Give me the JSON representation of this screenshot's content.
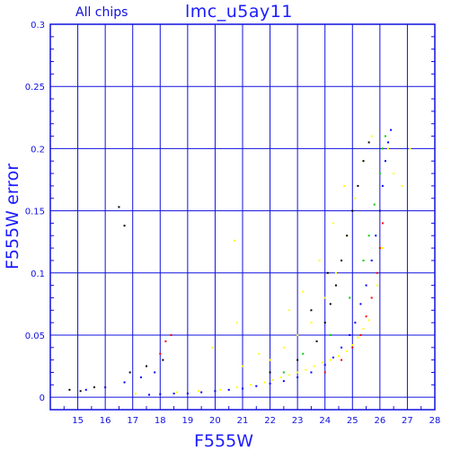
{
  "chart_data": {
    "type": "scatter",
    "subtitle": "All chips",
    "title": "lmc_u5ay11",
    "xlabel": "F555W",
    "ylabel": "F555W error",
    "xlim": [
      14,
      28
    ],
    "ylim": [
      -0.01,
      0.3
    ],
    "x_ticks": [
      15,
      16,
      17,
      18,
      19,
      20,
      21,
      22,
      23,
      24,
      25,
      26,
      27,
      28
    ],
    "y_ticks": [
      0,
      0.05,
      0.1,
      0.15,
      0.2,
      0.25,
      0.3
    ],
    "y_tick_labels": [
      "0",
      "0.05",
      "0.1",
      "0.15",
      "0.2",
      "0.25",
      "0.3"
    ],
    "grid": true,
    "series": [
      {
        "color": "#ffff00",
        "points": [
          [
            17.1,
            0.003
          ],
          [
            18.6,
            0.004
          ],
          [
            19.4,
            0.005
          ],
          [
            20.2,
            0.006
          ],
          [
            20.8,
            0.008
          ],
          [
            21.3,
            0.01
          ],
          [
            21.8,
            0.012
          ],
          [
            22.1,
            0.014
          ],
          [
            22.4,
            0.016
          ],
          [
            22.7,
            0.018
          ],
          [
            23.0,
            0.02
          ],
          [
            23.3,
            0.022
          ],
          [
            23.6,
            0.025
          ],
          [
            23.9,
            0.028
          ],
          [
            24.2,
            0.03
          ],
          [
            24.5,
            0.033
          ],
          [
            24.8,
            0.037
          ],
          [
            25.0,
            0.042
          ],
          [
            25.2,
            0.048
          ],
          [
            25.4,
            0.055
          ],
          [
            25.6,
            0.062
          ],
          [
            22.0,
            0.03
          ],
          [
            22.5,
            0.04
          ],
          [
            23.0,
            0.05
          ],
          [
            23.5,
            0.06
          ],
          [
            24.0,
            0.08
          ],
          [
            24.4,
            0.1
          ],
          [
            24.8,
            0.13
          ],
          [
            25.1,
            0.16
          ],
          [
            25.4,
            0.19
          ],
          [
            25.7,
            0.21
          ],
          [
            26.3,
            0.2
          ],
          [
            26.5,
            0.18
          ],
          [
            26.8,
            0.17
          ],
          [
            27.1,
            0.2
          ],
          [
            26.0,
            0.15
          ],
          [
            26.1,
            0.12
          ],
          [
            25.9,
            0.09
          ],
          [
            21.0,
            0.025
          ],
          [
            21.6,
            0.035
          ],
          [
            20.7,
            0.126
          ],
          [
            20.8,
            0.06
          ],
          [
            19.9,
            0.04
          ],
          [
            22.7,
            0.07
          ],
          [
            23.2,
            0.085
          ],
          [
            23.8,
            0.11
          ],
          [
            24.3,
            0.14
          ],
          [
            24.7,
            0.17
          ]
        ]
      },
      {
        "color": "#0000ff",
        "points": [
          [
            17.6,
            0.002
          ],
          [
            18.0,
            0.0025
          ],
          [
            18.5,
            0.003
          ],
          [
            19.0,
            0.003
          ],
          [
            19.5,
            0.004
          ],
          [
            20.0,
            0.005
          ],
          [
            20.5,
            0.006
          ],
          [
            21.0,
            0.007
          ],
          [
            21.5,
            0.009
          ],
          [
            22.0,
            0.011
          ],
          [
            22.5,
            0.013
          ],
          [
            23.0,
            0.016
          ],
          [
            23.5,
            0.02
          ],
          [
            24.0,
            0.026
          ],
          [
            24.3,
            0.032
          ],
          [
            24.6,
            0.04
          ],
          [
            24.9,
            0.05
          ],
          [
            25.1,
            0.06
          ],
          [
            25.3,
            0.075
          ],
          [
            25.5,
            0.09
          ],
          [
            25.7,
            0.11
          ],
          [
            25.85,
            0.13
          ],
          [
            26.0,
            0.15
          ],
          [
            26.1,
            0.17
          ],
          [
            26.2,
            0.19
          ],
          [
            26.3,
            0.205
          ],
          [
            26.4,
            0.215
          ],
          [
            15.3,
            0.006
          ],
          [
            16.0,
            0.008
          ],
          [
            16.7,
            0.012
          ],
          [
            17.3,
            0.016
          ],
          [
            17.8,
            0.02
          ]
        ]
      },
      {
        "color": "#000000",
        "points": [
          [
            14.7,
            0.006
          ],
          [
            15.1,
            0.005
          ],
          [
            15.6,
            0.008
          ],
          [
            16.5,
            0.153
          ],
          [
            16.7,
            0.138
          ],
          [
            16.9,
            0.02
          ],
          [
            17.5,
            0.025
          ],
          [
            18.1,
            0.03
          ],
          [
            22.0,
            0.02
          ],
          [
            23.0,
            0.03
          ],
          [
            23.7,
            0.045
          ],
          [
            24.0,
            0.06
          ],
          [
            24.2,
            0.075
          ],
          [
            24.4,
            0.09
          ],
          [
            24.6,
            0.11
          ],
          [
            24.8,
            0.13
          ],
          [
            25.0,
            0.15
          ],
          [
            25.2,
            0.17
          ],
          [
            25.4,
            0.19
          ],
          [
            25.6,
            0.205
          ],
          [
            23.5,
            0.07
          ],
          [
            24.1,
            0.1
          ]
        ]
      },
      {
        "color": "#ff0000",
        "points": [
          [
            18.0,
            0.035
          ],
          [
            18.2,
            0.045
          ],
          [
            18.4,
            0.05
          ],
          [
            24.0,
            0.02
          ],
          [
            24.6,
            0.03
          ],
          [
            25.0,
            0.04
          ],
          [
            25.3,
            0.05
          ],
          [
            25.5,
            0.065
          ],
          [
            25.7,
            0.08
          ],
          [
            25.9,
            0.1
          ],
          [
            26.0,
            0.12
          ],
          [
            26.1,
            0.14
          ]
        ]
      },
      {
        "color": "#00cc00",
        "points": [
          [
            23.2,
            0.035
          ],
          [
            24.2,
            0.05
          ],
          [
            24.9,
            0.08
          ],
          [
            25.4,
            0.11
          ],
          [
            25.6,
            0.13
          ],
          [
            25.8,
            0.155
          ],
          [
            26.0,
            0.18
          ],
          [
            26.1,
            0.2
          ],
          [
            26.2,
            0.21
          ],
          [
            22.5,
            0.02
          ]
        ]
      }
    ]
  }
}
